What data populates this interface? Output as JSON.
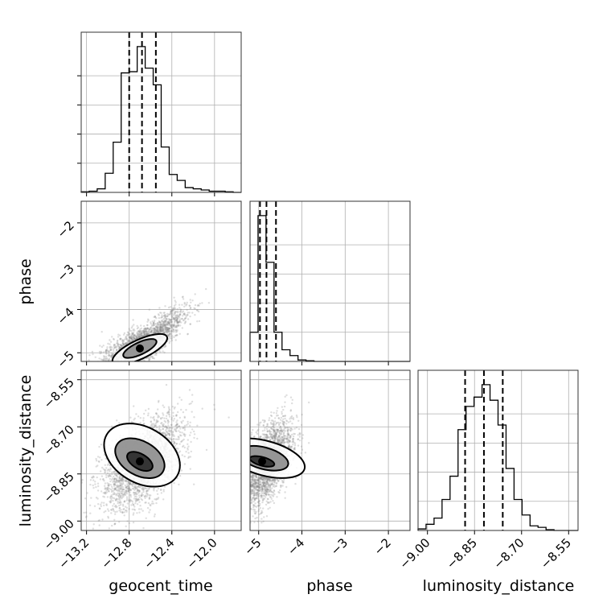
{
  "figure": {
    "colors": {
      "background": "#ffffff",
      "grid": "#b0b0b0",
      "ink": "#000000",
      "scatter": "#8a8a8a"
    }
  },
  "chart_data": {
    "type": "corner",
    "parameters": [
      "geocent_time",
      "phase",
      "luminosity_distance"
    ],
    "axis_labels": {
      "x": [
        "geocent_time",
        "phase",
        "luminosity_distance"
      ],
      "y": [
        "",
        "phase",
        "luminosity_distance"
      ]
    },
    "ranges": {
      "geocent_time": [
        -13.25,
        -11.75
      ],
      "phase": [
        -5.2,
        -1.5
      ],
      "luminosity_distance": [
        -9.03,
        -8.52
      ]
    },
    "ticks": {
      "geocent_time": [
        -13.2,
        -12.8,
        -12.4,
        -12.0
      ],
      "phase": [
        -5,
        -4,
        -3,
        -2
      ],
      "luminosity_distance": [
        -9.0,
        -8.85,
        -8.7,
        -8.55
      ]
    },
    "tick_labels": {
      "geocent_time": [
        "−13.2",
        "−12.8",
        "−12.4",
        "−12.0"
      ],
      "phase": [
        "−5",
        "−4",
        "−3",
        "−2"
      ],
      "luminosity_distance": [
        "−9.00",
        "−8.85",
        "−8.70",
        "−8.55"
      ]
    },
    "quantiles": {
      "geocent_time": [
        -12.8,
        -12.68,
        -12.55
      ],
      "phase": [
        -4.97,
        -4.82,
        -4.6
      ],
      "luminosity_distance": [
        -8.88,
        -8.82,
        -8.76
      ]
    },
    "histograms": {
      "geocent_time": {
        "edges": [
          -13.25,
          -13.175,
          -13.1,
          -13.025,
          -12.95,
          -12.875,
          -12.8,
          -12.725,
          -12.65,
          -12.575,
          -12.5,
          -12.425,
          -12.35,
          -12.275,
          -12.2,
          -12.125,
          -12.05,
          -11.975,
          -11.9,
          -11.825,
          -11.75
        ],
        "counts": [
          0.5,
          1,
          3,
          16,
          42,
          100,
          101,
          122,
          104,
          90,
          38,
          15,
          10,
          4,
          3,
          2,
          1,
          1,
          0.5,
          0
        ]
      },
      "phase": {
        "edges": [
          -5.2,
          -5.015,
          -4.83,
          -4.645,
          -4.46,
          -4.275,
          -4.09,
          -3.905,
          -3.72,
          -3.535,
          -3.35,
          -3.165,
          -2.98,
          -2.795,
          -2.61,
          -2.425,
          -2.24,
          -2.055,
          -1.87,
          -1.685,
          -1.5
        ],
        "counts": [
          20,
          100,
          68,
          20,
          8,
          4,
          1,
          0.5,
          0,
          0,
          0,
          0,
          0,
          0,
          0,
          0,
          0,
          0,
          0,
          0
        ]
      },
      "luminosity_distance": {
        "edges": [
          -9.03,
          -9.0045,
          -8.979,
          -8.9535,
          -8.928,
          -8.9025,
          -8.877,
          -8.8515,
          -8.826,
          -8.8005,
          -8.775,
          -8.7495,
          -8.724,
          -8.6985,
          -8.673,
          -8.6475,
          -8.622,
          -8.5965,
          -8.571,
          -8.5455,
          -8.52
        ],
        "counts": [
          1,
          4,
          8,
          20,
          35,
          65,
          80,
          86,
          94,
          84,
          68,
          40,
          20,
          10,
          3,
          2,
          0.5,
          0,
          0,
          0
        ]
      }
    },
    "scatter_model": {
      "note_free": true,
      "geocent_time": {
        "mean": -12.68,
        "sd": 0.19
      },
      "phase": {
        "mean": -4.83,
        "sd": 0.3
      },
      "luminosity_distance": {
        "mean": -8.82,
        "sd": 0.07
      },
      "correlation": {
        "geocent_time__phase": 0.72,
        "geocent_time__luminosity_distance": 0.5,
        "phase__luminosity_distance": 0.55
      },
      "points": 2500
    },
    "contours": {
      "geocent_time__phase": [
        {
          "center": [
            -12.7,
            -4.92
          ],
          "semi_axes": [
            0.28,
            0.22
          ],
          "angle_deg": 25
        },
        {
          "center": [
            -12.7,
            -4.9
          ],
          "semi_axes": [
            0.17,
            0.14
          ],
          "angle_deg": 25
        }
      ],
      "geocent_time__luminosity_distance": [
        {
          "center": [
            -12.68,
            -8.79
          ],
          "semi_axes": [
            0.26,
            0.13
          ],
          "angle_deg": 60
        },
        {
          "center": [
            -12.7,
            -8.8
          ],
          "semi_axes": [
            0.16,
            0.085
          ],
          "angle_deg": 60
        },
        {
          "center": [
            -12.7,
            -8.81
          ],
          "semi_axes": [
            0.07,
            0.045
          ],
          "angle_deg": 60
        }
      ],
      "phase__luminosity_distance": [
        {
          "center": [
            -4.85,
            -8.8
          ],
          "semi_axes": [
            0.4,
            0.13
          ],
          "angle_deg": 75
        },
        {
          "center": [
            -4.88,
            -8.8
          ],
          "semi_axes": [
            0.25,
            0.08
          ],
          "angle_deg": 75
        },
        {
          "center": [
            -4.92,
            -8.81
          ],
          "semi_axes": [
            0.1,
            0.04
          ],
          "angle_deg": 75
        }
      ]
    },
    "grid": true
  }
}
